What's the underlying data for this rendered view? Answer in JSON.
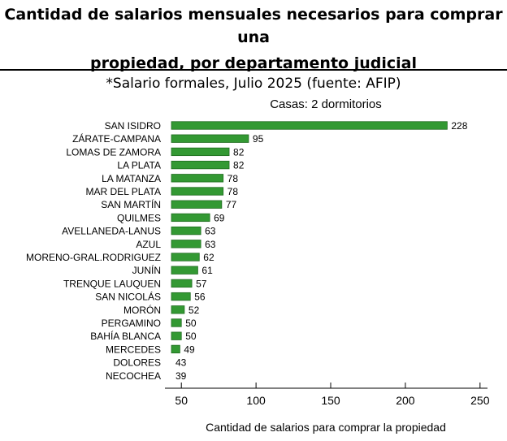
{
  "header": {
    "title_line1": "Cantidad de salarios mensuales necesarios para comprar una",
    "title_line2": "propiedad, por departamento judicial",
    "subtitle": "*Salario formales, Julio 2025 (fuente: AFIP)"
  },
  "chart_data": {
    "type": "bar",
    "orientation": "horizontal",
    "title": "Casas: 2 dormitorios",
    "xlabel": "Cantidad de salarios para comprar la propiedad",
    "ylabel": "",
    "categories": [
      "SAN ISIDRO",
      "ZÁRATE-CAMPANA",
      "LOMAS DE ZAMORA",
      "LA PLATA",
      "LA MATANZA",
      "MAR DEL PLATA",
      "SAN MARTÍN",
      "QUILMES",
      "AVELLANEDA-LANUS",
      "AZUL",
      "MORENO-GRAL.RODRIGUEZ",
      "JUNÍN",
      "TRENQUE LAUQUEN",
      "SAN NICOLÁS",
      "MORÓN",
      "PERGAMINO",
      "BAHÍA BLANCA",
      "MERCEDES",
      "DOLORES",
      "NECOCHEA"
    ],
    "values": [
      228,
      95,
      82,
      82,
      78,
      78,
      77,
      69,
      63,
      63,
      62,
      61,
      57,
      56,
      52,
      50,
      50,
      49,
      43,
      39
    ],
    "xlim": [
      39,
      255
    ],
    "xticks": [
      50,
      100,
      150,
      200,
      250
    ],
    "bar_color": "#339933",
    "bar_edge_color": "#1f6b1f",
    "grid": false,
    "value_labels": true
  }
}
